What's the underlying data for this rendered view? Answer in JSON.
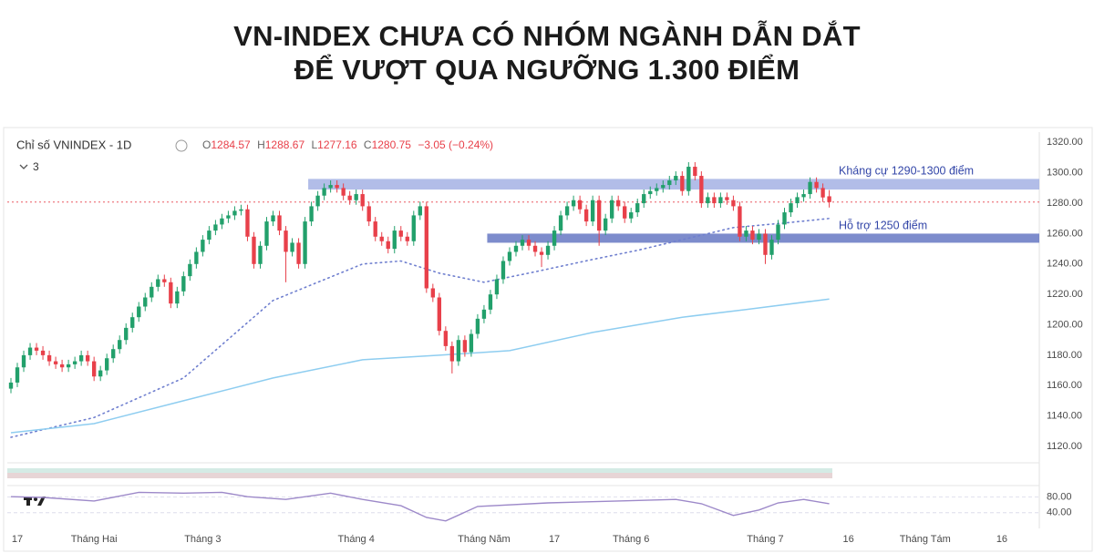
{
  "header": {
    "title_lines": [
      "VN-INDEX CHƯA CÓ NHÓM NGÀNH DẪN DẮT",
      "ĐỂ VƯỢT QUA NGƯỠNG 1.300 ĐIỂM"
    ]
  },
  "chart_data": {
    "type": "candlestick",
    "symbol_label": "Chỉ số VNINDEX - 1D",
    "indicator_count": "3",
    "ohlc_labels": [
      "O",
      "H",
      "L",
      "C"
    ],
    "change_label": "−3.05 (−0.24%)",
    "up_color": "#22a06b",
    "down_color": "#e8404a",
    "categories": [
      null,
      "17",
      null,
      null,
      null,
      null,
      null,
      null,
      null,
      null,
      null,
      null,
      null,
      "Tháng Hai",
      null,
      null,
      null,
      null,
      null,
      null,
      null,
      null,
      null,
      null,
      null,
      null,
      null,
      null,
      null,
      null,
      "Tháng 3",
      null,
      null,
      null,
      null,
      null,
      null,
      null,
      null,
      null,
      null,
      null,
      null,
      null,
      null,
      null,
      null,
      null,
      null,
      null,
      null,
      null,
      null,
      null,
      "Tháng 4",
      null,
      null,
      null,
      null,
      null,
      null,
      null,
      null,
      null,
      null,
      null,
      null,
      null,
      null,
      null,
      null,
      null,
      null,
      null,
      "Tháng Năm",
      null,
      null,
      null,
      null,
      null,
      null,
      null,
      null,
      null,
      null,
      "17",
      null,
      null,
      null,
      null,
      null,
      null,
      null,
      null,
      null,
      null,
      null,
      "Tháng 6",
      null,
      null,
      null,
      null,
      null,
      null,
      null,
      null,
      null,
      null,
      null,
      null,
      null,
      null,
      null,
      null,
      null,
      null,
      null,
      null,
      "Tháng 7",
      null,
      null,
      null,
      null,
      null,
      null,
      null,
      null,
      null,
      null,
      null,
      null,
      "16",
      null,
      null,
      null,
      null,
      null,
      null,
      null,
      null,
      null,
      null,
      null,
      "Tháng Tám",
      null,
      null,
      null,
      null,
      null,
      null,
      null,
      null,
      null,
      null,
      null,
      "16",
      null,
      null,
      null,
      null,
      null
    ],
    "open": [
      1158,
      1162,
      1172,
      1180,
      1185,
      1183,
      1180,
      1176,
      1174,
      1172,
      1174,
      1176,
      1180,
      1176,
      1166,
      1170,
      1178,
      1184,
      1190,
      1198,
      1205,
      1212,
      1218,
      1225,
      1230,
      1228,
      1214,
      1222,
      1232,
      1240,
      1248,
      1256,
      1262,
      1266,
      1270,
      1272,
      1275,
      1276,
      1258,
      1240,
      1252,
      1268,
      1272,
      1262,
      1248,
      1254,
      1240,
      1268,
      1278,
      1285,
      1290,
      1292,
      1290,
      1285,
      1282,
      1286,
      1278,
      1268,
      1258,
      1255,
      1250,
      1262,
      1258,
      1255,
      1272,
      1278,
      1224,
      1218,
      1196,
      1186,
      1176,
      1190,
      1182,
      1194,
      1204,
      1210,
      1220,
      1230,
      1242,
      1248,
      1252,
      1256,
      1252,
      1248,
      1246,
      1252,
      1262,
      1272,
      1278,
      1282,
      1276,
      1268,
      1282,
      1262,
      1270,
      1282,
      1278,
      1270,
      1274,
      1280,
      1286,
      1288,
      1290,
      1292,
      1295,
      1298,
      1288,
      1304,
      1298,
      1280,
      1284,
      1280,
      1284,
      1282,
      1278,
      1258,
      1262,
      1256,
      1260,
      1246,
      1256,
      1266,
      1274,
      1280,
      1284,
      1286,
      1294,
      1290,
      1284.57,
      null,
      null,
      null,
      null,
      null,
      null,
      null,
      null,
      null,
      null,
      null,
      null,
      null,
      null,
      null,
      null,
      null,
      null,
      null,
      null,
      null,
      null,
      null,
      null,
      null,
      null,
      null,
      null,
      null,
      null,
      null,
      null
    ],
    "high": [
      1165,
      1175,
      1183,
      1188,
      1188,
      1186,
      1183,
      1179,
      1177,
      1177,
      1179,
      1183,
      1183,
      1179,
      1173,
      1181,
      1187,
      1193,
      1201,
      1208,
      1215,
      1221,
      1228,
      1233,
      1233,
      1231,
      1225,
      1235,
      1243,
      1251,
      1259,
      1265,
      1269,
      1273,
      1275,
      1278,
      1279,
      1279,
      1261,
      1255,
      1271,
      1275,
      1275,
      1265,
      1257,
      1257,
      1271,
      1281,
      1288,
      1293,
      1295,
      1295,
      1293,
      1288,
      1289,
      1289,
      1281,
      1271,
      1261,
      1258,
      1265,
      1265,
      1261,
      1275,
      1281,
      1281,
      1227,
      1221,
      1199,
      1189,
      1193,
      1193,
      1197,
      1207,
      1213,
      1223,
      1233,
      1245,
      1251,
      1255,
      1259,
      1259,
      1255,
      1251,
      1255,
      1265,
      1275,
      1281,
      1285,
      1285,
      1279,
      1285,
      1285,
      1273,
      1285,
      1285,
      1281,
      1277,
      1283,
      1289,
      1291,
      1293,
      1295,
      1298,
      1301,
      1301,
      1307,
      1307,
      1301,
      1287,
      1287,
      1287,
      1287,
      1285,
      1281,
      1265,
      1265,
      1263,
      1263,
      1259,
      1269,
      1277,
      1283,
      1287,
      1289,
      1297,
      1297,
      1293,
      1288.67,
      null,
      null,
      null,
      null,
      null,
      null,
      null,
      null,
      null,
      null,
      null,
      null,
      null,
      null,
      null,
      null,
      null,
      null,
      null,
      null,
      null,
      null,
      null,
      null,
      null,
      null,
      null,
      null,
      null,
      null,
      null,
      null
    ],
    "low": [
      1155,
      1159,
      1169,
      1177,
      1180,
      1177,
      1173,
      1171,
      1169,
      1169,
      1171,
      1173,
      1173,
      1163,
      1163,
      1167,
      1175,
      1181,
      1187,
      1195,
      1202,
      1209,
      1215,
      1222,
      1225,
      1211,
      1211,
      1219,
      1229,
      1237,
      1245,
      1253,
      1259,
      1263,
      1267,
      1269,
      1272,
      1255,
      1237,
      1237,
      1249,
      1265,
      1259,
      1228,
      1245,
      1237,
      1237,
      1265,
      1275,
      1282,
      1287,
      1287,
      1282,
      1279,
      1279,
      1275,
      1265,
      1255,
      1252,
      1247,
      1247,
      1255,
      1252,
      1252,
      1269,
      1221,
      1215,
      1193,
      1183,
      1168,
      1173,
      1179,
      1179,
      1191,
      1201,
      1207,
      1217,
      1227,
      1239,
      1245,
      1249,
      1249,
      1245,
      1238,
      1243,
      1249,
      1259,
      1269,
      1275,
      1273,
      1265,
      1265,
      1252,
      1259,
      1267,
      1275,
      1267,
      1267,
      1271,
      1277,
      1283,
      1285,
      1287,
      1289,
      1292,
      1285,
      1285,
      1295,
      1277,
      1277,
      1277,
      1277,
      1279,
      1275,
      1255,
      1255,
      1253,
      1253,
      1240,
      1243,
      1253,
      1263,
      1271,
      1277,
      1281,
      1283,
      1287,
      1280.8,
      1277.16,
      null,
      null,
      null,
      null,
      null,
      null,
      null,
      null,
      null,
      null,
      null,
      null,
      null,
      null,
      null,
      null,
      null,
      null,
      null,
      null,
      null,
      null,
      null,
      null,
      null,
      null,
      null,
      null,
      null,
      null,
      null,
      null
    ],
    "close": [
      1162,
      1172,
      1180,
      1185,
      1183,
      1180,
      1176,
      1174,
      1172,
      1174,
      1176,
      1180,
      1176,
      1166,
      1170,
      1178,
      1184,
      1190,
      1198,
      1205,
      1212,
      1218,
      1225,
      1230,
      1228,
      1214,
      1222,
      1232,
      1240,
      1248,
      1256,
      1262,
      1266,
      1270,
      1272,
      1275,
      1276,
      1258,
      1240,
      1252,
      1268,
      1272,
      1262,
      1248,
      1254,
      1240,
      1268,
      1278,
      1285,
      1290,
      1292,
      1290,
      1285,
      1282,
      1286,
      1278,
      1268,
      1258,
      1255,
      1250,
      1262,
      1258,
      1255,
      1272,
      1278,
      1224,
      1218,
      1196,
      1186,
      1176,
      1190,
      1182,
      1194,
      1204,
      1210,
      1220,
      1230,
      1242,
      1248,
      1252,
      1256,
      1252,
      1248,
      1246,
      1252,
      1262,
      1272,
      1278,
      1282,
      1276,
      1268,
      1282,
      1262,
      1270,
      1282,
      1278,
      1270,
      1274,
      1280,
      1286,
      1288,
      1290,
      1292,
      1295,
      1298,
      1288,
      1304,
      1298,
      1280,
      1284,
      1280,
      1284,
      1282,
      1278,
      1258,
      1262,
      1256,
      1260,
      1246,
      1256,
      1266,
      1274,
      1280,
      1284,
      1286,
      1294,
      1290,
      1283.8,
      1280.75,
      null,
      null,
      null,
      null,
      null,
      null,
      null,
      null,
      null,
      null,
      null,
      null,
      null,
      null,
      null,
      null,
      null,
      null,
      null,
      null,
      null,
      null,
      null,
      null,
      null,
      null,
      null,
      null,
      null,
      null,
      null,
      null
    ],
    "ylim": [
      1111,
      1325
    ],
    "yticks": [
      {
        "value": 1120,
        "label": "1120.00"
      },
      {
        "value": 1140,
        "label": "1140.00"
      },
      {
        "value": 1160,
        "label": "1160.00"
      },
      {
        "value": 1180,
        "label": "1180.00"
      },
      {
        "value": 1200,
        "label": "1200.00"
      },
      {
        "value": 1220,
        "label": "1220.00"
      },
      {
        "value": 1240,
        "label": "1240.00"
      },
      {
        "value": 1260,
        "label": "1260.00"
      },
      {
        "value": 1280,
        "label": "1280.00"
      },
      {
        "value": 1300,
        "label": "1300.00"
      },
      {
        "value": 1320,
        "label": "1320.00"
      }
    ],
    "last_price_line": true,
    "last_price_color": "#e8404a",
    "ma_lines": [
      {
        "style": "dotted",
        "color": "#6f7fcf",
        "x": [
          0,
          13,
          27,
          41,
          55,
          61,
          67,
          74,
          81,
          91,
          98,
          107,
          113,
          121,
          128
        ],
        "values": [
          1126,
          1139,
          1165,
          1216,
          1240,
          1242,
          1234,
          1228,
          1234,
          1243,
          1249,
          1258,
          1264,
          1267,
          1270
        ]
      },
      {
        "style": "solid",
        "color": "#8ecdf0",
        "x": [
          0,
          13,
          27,
          41,
          55,
          67,
          78,
          91,
          105,
          115,
          128
        ],
        "values": [
          1129,
          1135,
          1150,
          1165,
          1177,
          1180,
          1183,
          1195,
          1205,
          1210,
          1217
        ]
      }
    ],
    "bands": [
      {
        "label": "Kháng cự 1290-1300 điểm",
        "low": 1289,
        "high": 1296,
        "start": 47,
        "color": "#aab6e6"
      },
      {
        "label": "Hỗ trợ 1250 điểm",
        "low": 1254,
        "high": 1260,
        "start": 75,
        "color": "#6f80c6"
      }
    ],
    "rsi": {
      "color": "#9d89c9",
      "ylim": [
        0,
        100
      ],
      "yticks": [
        {
          "value": 80,
          "label": "80.00"
        },
        {
          "value": 40,
          "label": "40.00"
        }
      ],
      "x": [
        0,
        5,
        13,
        20,
        27,
        33,
        37,
        43,
        50,
        55,
        61,
        65,
        68,
        73,
        84,
        95,
        104,
        108,
        113,
        117,
        120,
        124,
        128
      ],
      "values": [
        81,
        79,
        70,
        92,
        90,
        92,
        81,
        74,
        90,
        74,
        58,
        28,
        19,
        56,
        65,
        70,
        74,
        63,
        33,
        47,
        65,
        74,
        63
      ]
    }
  }
}
